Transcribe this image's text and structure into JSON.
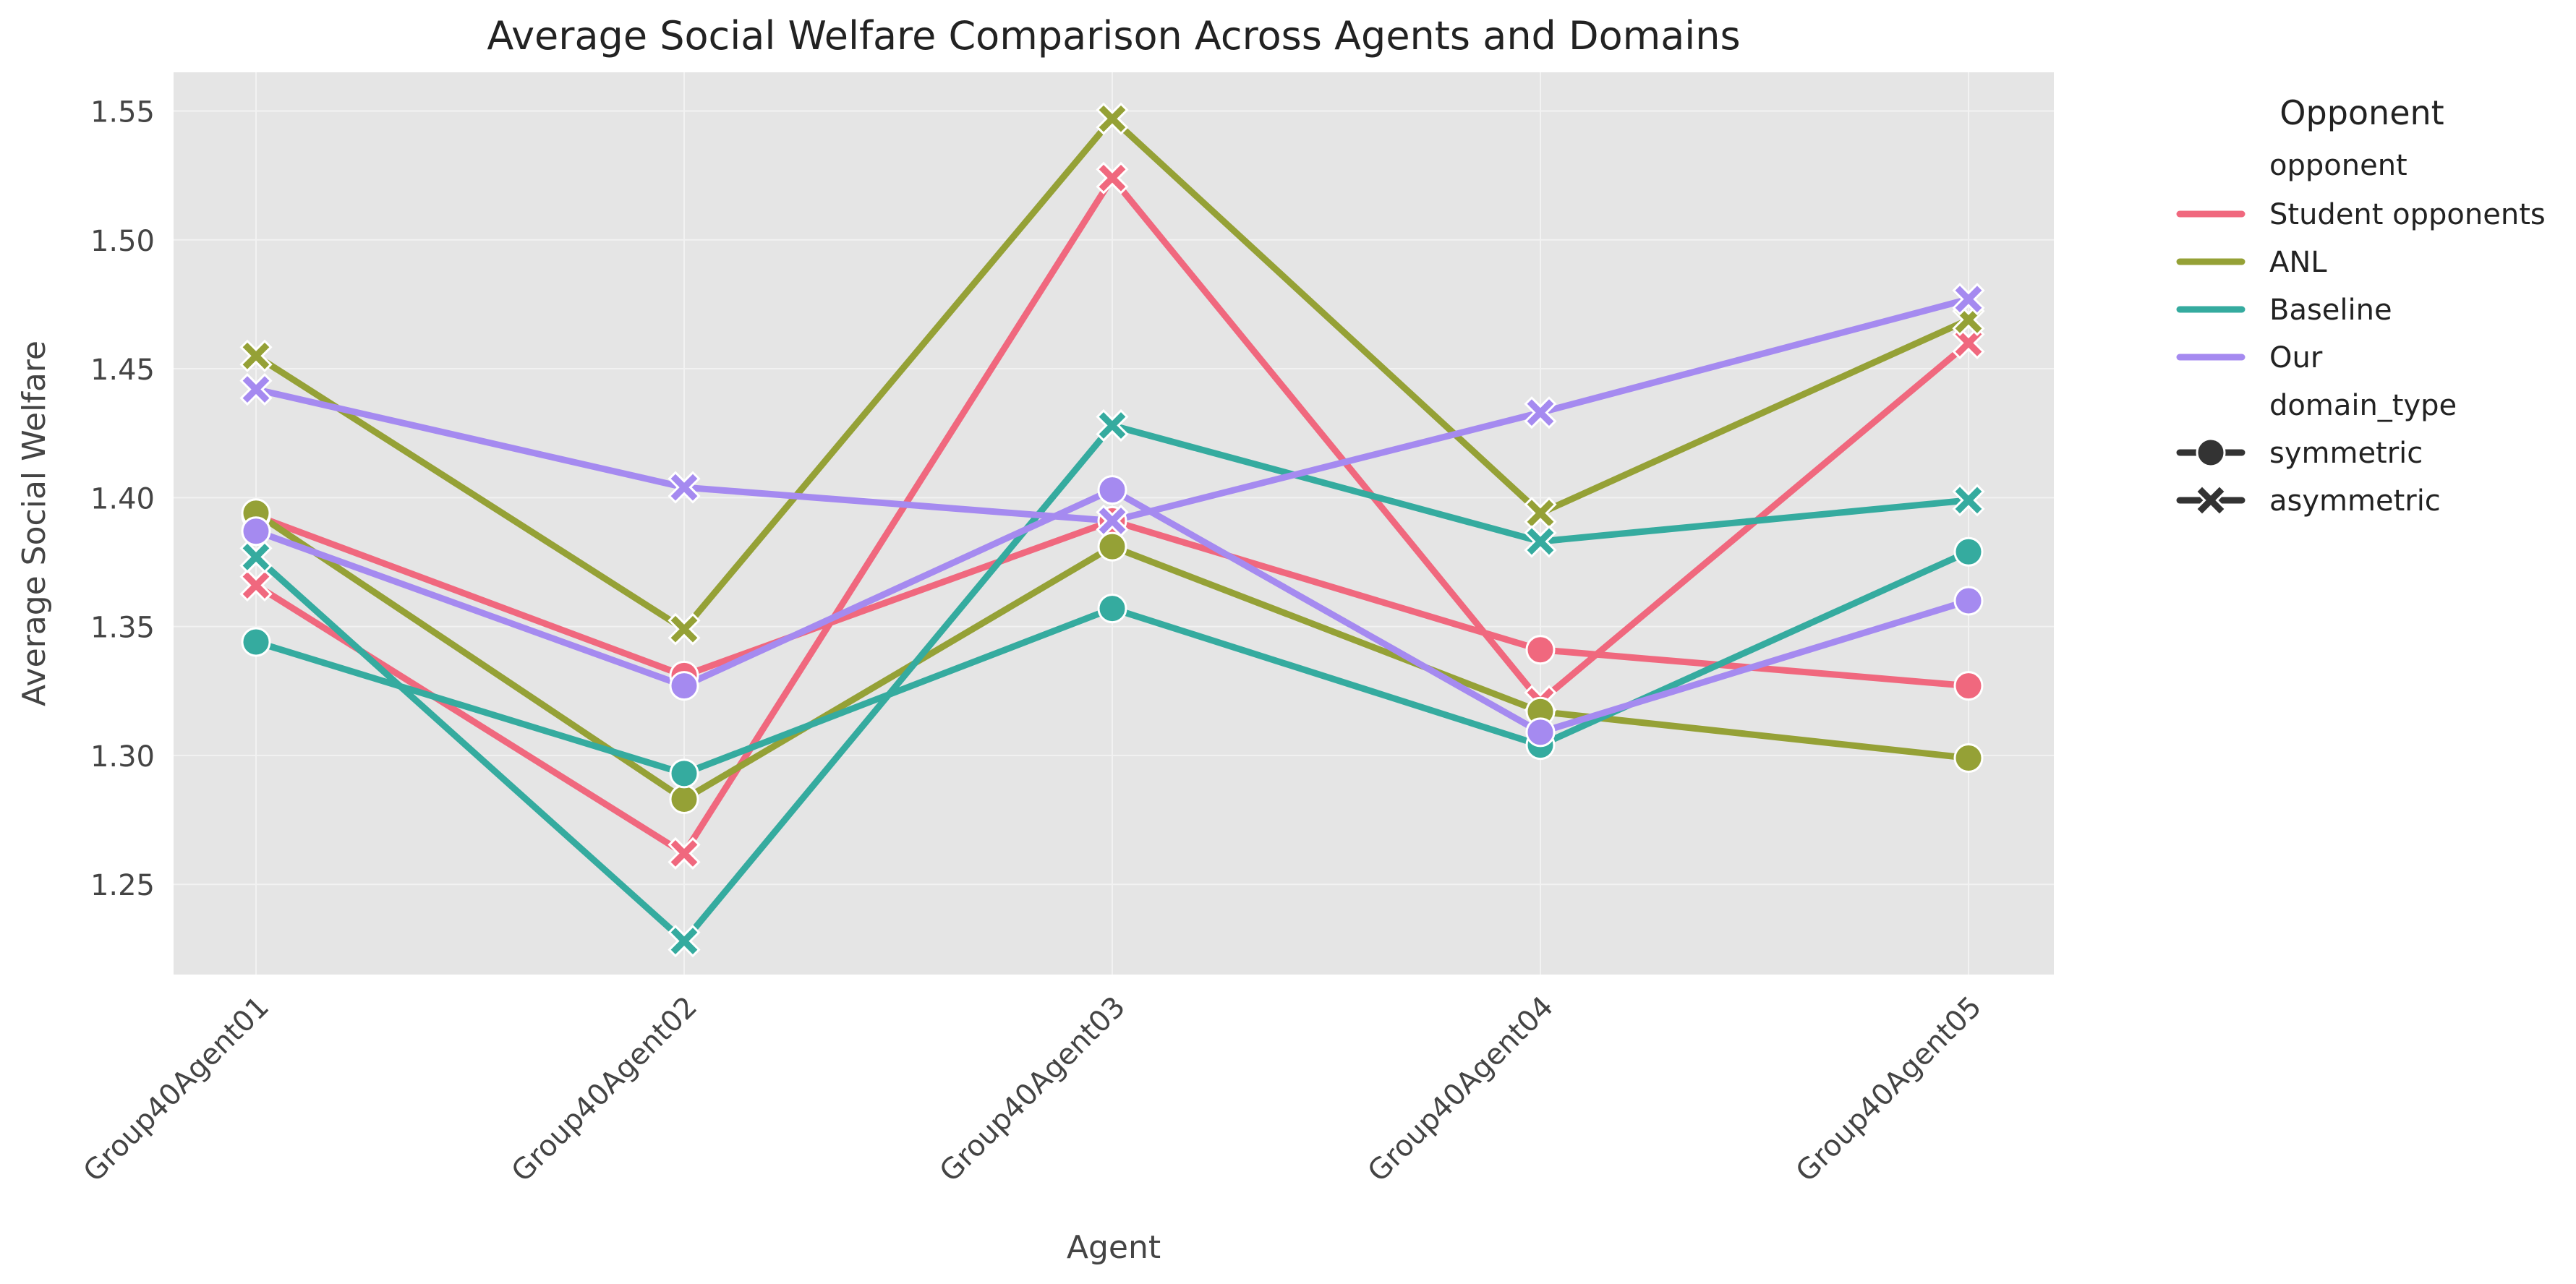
{
  "chart_data": {
    "type": "line",
    "title": "Average Social Welfare Comparison Across Agents and Domains",
    "xlabel": "Agent",
    "ylabel": "Average Social Welfare",
    "categories": [
      "Group40Agent01",
      "Group40Agent02",
      "Group40Agent03",
      "Group40Agent04",
      "Group40Agent05"
    ],
    "ylim": [
      1.215,
      1.565
    ],
    "yticks": [
      1.25,
      1.3,
      1.35,
      1.4,
      1.45,
      1.5,
      1.55
    ],
    "ytick_labels": [
      "1.25",
      "1.30",
      "1.35",
      "1.40",
      "1.45",
      "1.50",
      "1.55"
    ],
    "grid": true,
    "background": "#e5e5e5",
    "legend": {
      "title": "Opponent",
      "placement": "outside-right",
      "hue_title": "opponent",
      "style_title": "domain_type",
      "hue_entries": [
        {
          "label": "Student opponents",
          "color": "#f0687e"
        },
        {
          "label": "ANL",
          "color": "#95a136"
        },
        {
          "label": "Baseline",
          "color": "#35ab9f"
        },
        {
          "label": "Our",
          "color": "#a58af0"
        }
      ],
      "style_entries": [
        {
          "label": "symmetric",
          "marker": "circle"
        },
        {
          "label": "asymmetric",
          "marker": "x"
        }
      ]
    },
    "series": [
      {
        "opponent": "Student opponents",
        "domain_type": "symmetric",
        "color": "#f0687e",
        "marker": "circle",
        "values": [
          1.393,
          1.331,
          1.391,
          1.341,
          1.327
        ]
      },
      {
        "opponent": "Student opponents",
        "domain_type": "asymmetric",
        "color": "#f0687e",
        "marker": "x",
        "values": [
          1.366,
          1.262,
          1.524,
          1.321,
          1.46
        ]
      },
      {
        "opponent": "ANL",
        "domain_type": "symmetric",
        "color": "#95a136",
        "marker": "circle",
        "values": [
          1.394,
          1.283,
          1.381,
          1.317,
          1.299
        ]
      },
      {
        "opponent": "ANL",
        "domain_type": "asymmetric",
        "color": "#95a136",
        "marker": "x",
        "values": [
          1.455,
          1.349,
          1.547,
          1.394,
          1.469
        ]
      },
      {
        "opponent": "Baseline",
        "domain_type": "symmetric",
        "color": "#35ab9f",
        "marker": "circle",
        "values": [
          1.344,
          1.293,
          1.357,
          1.304,
          1.379
        ]
      },
      {
        "opponent": "Baseline",
        "domain_type": "asymmetric",
        "color": "#35ab9f",
        "marker": "x",
        "values": [
          1.377,
          1.228,
          1.428,
          1.383,
          1.399
        ]
      },
      {
        "opponent": "Our",
        "domain_type": "symmetric",
        "color": "#a58af0",
        "marker": "circle",
        "values": [
          1.387,
          1.327,
          1.403,
          1.309,
          1.36
        ]
      },
      {
        "opponent": "Our",
        "domain_type": "asymmetric",
        "color": "#a58af0",
        "marker": "x",
        "values": [
          1.442,
          1.404,
          1.391,
          1.433,
          1.477
        ]
      }
    ]
  }
}
